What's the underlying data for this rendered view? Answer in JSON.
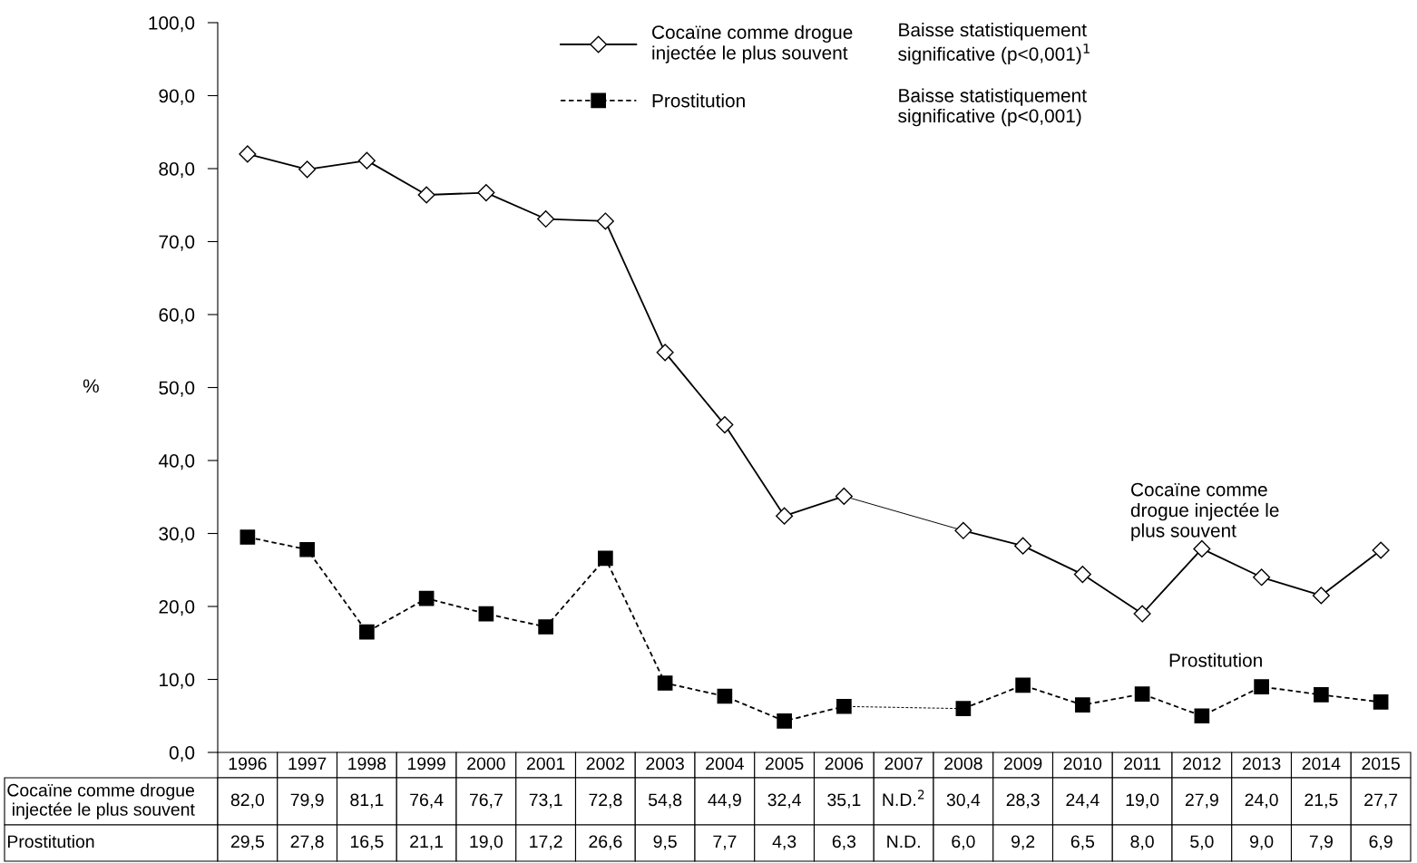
{
  "chart_data": {
    "type": "line",
    "categories": [
      "1996",
      "1997",
      "1998",
      "1999",
      "2000",
      "2001",
      "2002",
      "2003",
      "2004",
      "2005",
      "2006",
      "2007",
      "2008",
      "2009",
      "2010",
      "2011",
      "2012",
      "2013",
      "2014",
      "2015"
    ],
    "ylabel": "%",
    "ylim": [
      0,
      100
    ],
    "yticks": [
      {
        "value": 0,
        "label": "0,0"
      },
      {
        "value": 10,
        "label": "10,0"
      },
      {
        "value": 20,
        "label": "20,0"
      },
      {
        "value": 30,
        "label": "30,0"
      },
      {
        "value": 40,
        "label": "40,0"
      },
      {
        "value": 50,
        "label": "50,0"
      },
      {
        "value": 60,
        "label": "60,0"
      },
      {
        "value": 70,
        "label": "70,0"
      },
      {
        "value": 80,
        "label": "80,0"
      },
      {
        "value": 90,
        "label": "90,0"
      },
      {
        "value": 100,
        "label": "100,0"
      }
    ],
    "series": [
      {
        "name": "Cocaïne comme drogue injectée le plus souvent",
        "color": "#000000",
        "marker": "diamond",
        "line_style": "solid",
        "values": [
          82.0,
          79.9,
          81.1,
          76.4,
          76.7,
          73.1,
          72.8,
          54.8,
          44.9,
          32.4,
          35.1,
          null,
          30.4,
          28.3,
          24.4,
          19.0,
          27.9,
          24.0,
          21.5,
          27.7
        ],
        "value_labels": [
          "82,0",
          "79,9",
          "81,1",
          "76,4",
          "76,7",
          "73,1",
          "72,8",
          "54,8",
          "44,9",
          "32,4",
          "35,1",
          "N.D.$^{2}$",
          "30,4",
          "28,3",
          "24,4",
          "19,0",
          "27,9",
          "24,0",
          "21,5",
          "27,7"
        ]
      },
      {
        "name": "Prostitution",
        "color": "#000000",
        "marker": "square",
        "line_style": "dashed",
        "values": [
          29.5,
          27.8,
          16.5,
          21.1,
          19.0,
          17.2,
          26.6,
          9.5,
          7.7,
          4.3,
          6.3,
          null,
          6.0,
          9.2,
          6.5,
          8.0,
          5.0,
          9.0,
          7.9,
          6.9
        ],
        "value_labels": [
          "29,5",
          "27,8",
          "16,5",
          "21,1",
          "19,0",
          "17,2",
          "26,6",
          "9,5",
          "7,7",
          "4,3",
          "6,3",
          "N.D.",
          "6,0",
          "9,2",
          "6,5",
          "8,0",
          "5,0",
          "9,0",
          "7,9",
          "6,9"
        ]
      }
    ],
    "annotations": [
      "Baisse statistiquement significative (p<0,001)$^{1}$",
      "Baisse statistiquement significative (p<0,001)",
      "Cocaïne comme drogue injectée le plus souvent",
      "Prostitution"
    ],
    "grid": false,
    "legend": "top"
  }
}
